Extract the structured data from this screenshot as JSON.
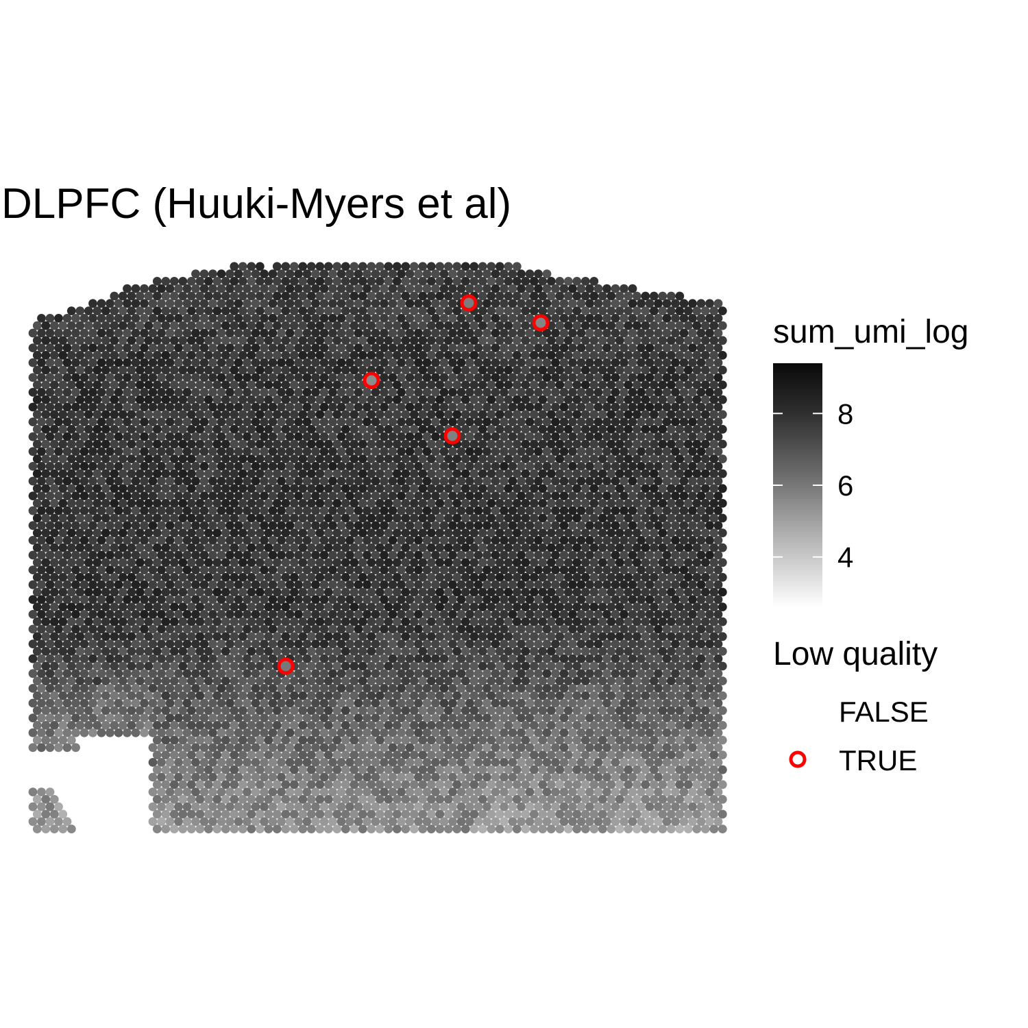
{
  "chart_data": {
    "type": "scatter",
    "subtype": "spatial-spot-map",
    "title": "DLPFC (Huuki-Myers et al)",
    "color_scale": {
      "variable": "sum_umi_log",
      "low_color": "#ffffff",
      "high_color": "#000000",
      "range": [
        2.6,
        9.4
      ],
      "ticks": [
        4,
        6,
        8
      ]
    },
    "shape_legend": {
      "title": "Low quality",
      "entries": [
        {
          "label": "FALSE",
          "marker": "none"
        },
        {
          "label": "TRUE",
          "marker": "ring",
          "color": "#ff0000"
        }
      ]
    },
    "spots_shown": "approx. 4000 tissue spots with sum_umi_log mostly 5–8.5; darker (higher) in upper layers, lighter (lower) toward bottom edge",
    "low_quality_spots": [
      {
        "label": "TRUE",
        "value": 5.9
      },
      {
        "label": "TRUE",
        "value": 5.7
      },
      {
        "label": "TRUE",
        "value": 5.5
      },
      {
        "label": "TRUE",
        "value": 5.8
      },
      {
        "label": "TRUE",
        "value": 6.0
      }
    ],
    "grid": false,
    "axes_visible": false,
    "legend_position": "right"
  }
}
